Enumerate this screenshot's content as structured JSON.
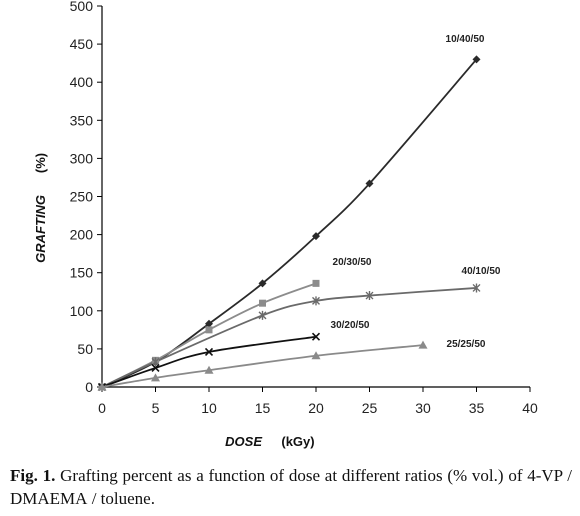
{
  "chart_data": {
    "type": "line",
    "xlabel": "DOSE",
    "xunit": "(kGy)",
    "ylabel": "GRAFTING",
    "yunit": "(%)",
    "xlim": [
      0,
      40
    ],
    "ylim": [
      0,
      500
    ],
    "xticks": [
      0,
      5,
      10,
      15,
      20,
      25,
      30,
      35,
      40
    ],
    "yticks": [
      0,
      50,
      100,
      150,
      200,
      250,
      300,
      350,
      400,
      450,
      500
    ],
    "grid": false,
    "legend": "none",
    "series": [
      {
        "name": "10/40/50",
        "marker": "diamond",
        "color": "#2a2a2a",
        "x": [
          0,
          5,
          10,
          15,
          20,
          25,
          35
        ],
        "y": [
          0,
          33,
          83,
          136,
          198,
          267,
          430
        ]
      },
      {
        "name": "20/30/50",
        "marker": "square",
        "color": "#8c8c8c",
        "x": [
          0,
          5,
          10,
          15,
          20
        ],
        "y": [
          0,
          35,
          75,
          110,
          136
        ]
      },
      {
        "name": "40/10/50",
        "marker": "star",
        "color": "#6a6a6a",
        "x": [
          0,
          5,
          15,
          20,
          25,
          35
        ],
        "y": [
          0,
          33,
          94,
          113,
          120,
          130
        ]
      },
      {
        "name": "30/20/50",
        "marker": "x",
        "color": "#111111",
        "x": [
          0,
          5,
          10,
          20
        ],
        "y": [
          0,
          25,
          46,
          66
        ]
      },
      {
        "name": "25/25/50",
        "marker": "triangle",
        "color": "#8a8a8a",
        "x": [
          0,
          5,
          10,
          20,
          30
        ],
        "y": [
          0,
          12,
          22,
          41,
          55
        ]
      }
    ]
  },
  "caption": {
    "figure_label": "Fig. 1.",
    "text_before": "Grafting percent as a function of dose at different ratios (% vol.) of 4-VP / ",
    "smallcaps_term": "DMAEMA",
    "text_after": " / toluene."
  }
}
